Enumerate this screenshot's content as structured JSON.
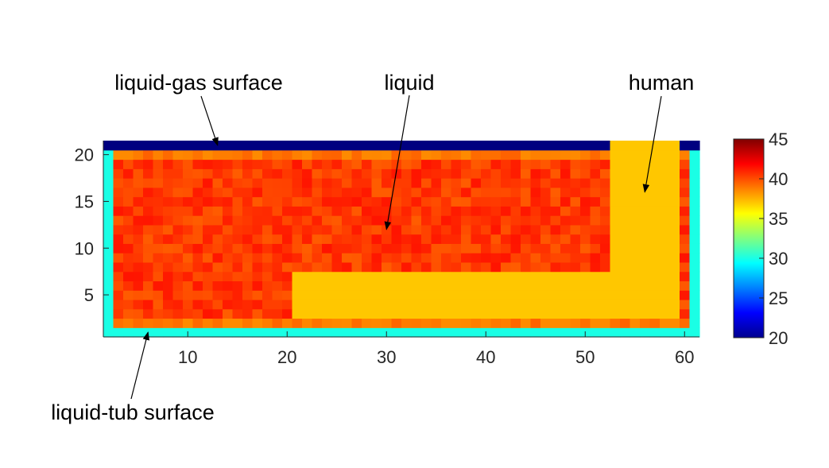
{
  "chart_data": {
    "type": "heatmap",
    "title": "",
    "xlabel": "",
    "ylabel": "",
    "colormap": "jet",
    "x_cells": [
      2,
      61
    ],
    "y_cells": [
      1,
      21
    ],
    "xlim": [
      1.5,
      61.5
    ],
    "ylim": [
      0.5,
      21.5
    ],
    "xticks": [
      10,
      20,
      30,
      40,
      50,
      60
    ],
    "yticks": [
      5,
      10,
      15,
      20
    ],
    "colorbar": {
      "min": 20,
      "max": 45,
      "ticks": [
        20,
        25,
        30,
        35,
        40,
        45
      ]
    },
    "regions": [
      {
        "name": "liquid-gas surface",
        "x": [
          2,
          61
        ],
        "y": [
          21,
          21
        ],
        "value": 20
      },
      {
        "name": "tub wall",
        "x": [
          2,
          2
        ],
        "y": [
          1,
          20
        ],
        "value": 30
      },
      {
        "name": "tub wall",
        "x": [
          61,
          61
        ],
        "y": [
          1,
          20
        ],
        "value": 30
      },
      {
        "name": "tub floor",
        "x": [
          2,
          61
        ],
        "y": [
          1,
          1
        ],
        "value": 30
      },
      {
        "name": "liquid",
        "x": [
          3,
          60
        ],
        "y": [
          2,
          20
        ],
        "value_range": [
          38.5,
          41.5
        ],
        "typical": 40.5
      },
      {
        "name": "human torso",
        "x": [
          53,
          59
        ],
        "y": [
          3,
          21
        ],
        "value": 37
      },
      {
        "name": "human legs",
        "x": [
          21,
          52
        ],
        "y": [
          3,
          7
        ],
        "value": 37
      }
    ],
    "annotations": [
      {
        "text": "liquid-gas surface",
        "points_to": [
          13,
          21
        ]
      },
      {
        "text": "liquid",
        "points_to": [
          30,
          12
        ]
      },
      {
        "text": "human",
        "points_to": [
          56,
          16
        ]
      },
      {
        "text": "liquid-tub surface",
        "points_to": [
          6,
          1
        ]
      }
    ]
  }
}
